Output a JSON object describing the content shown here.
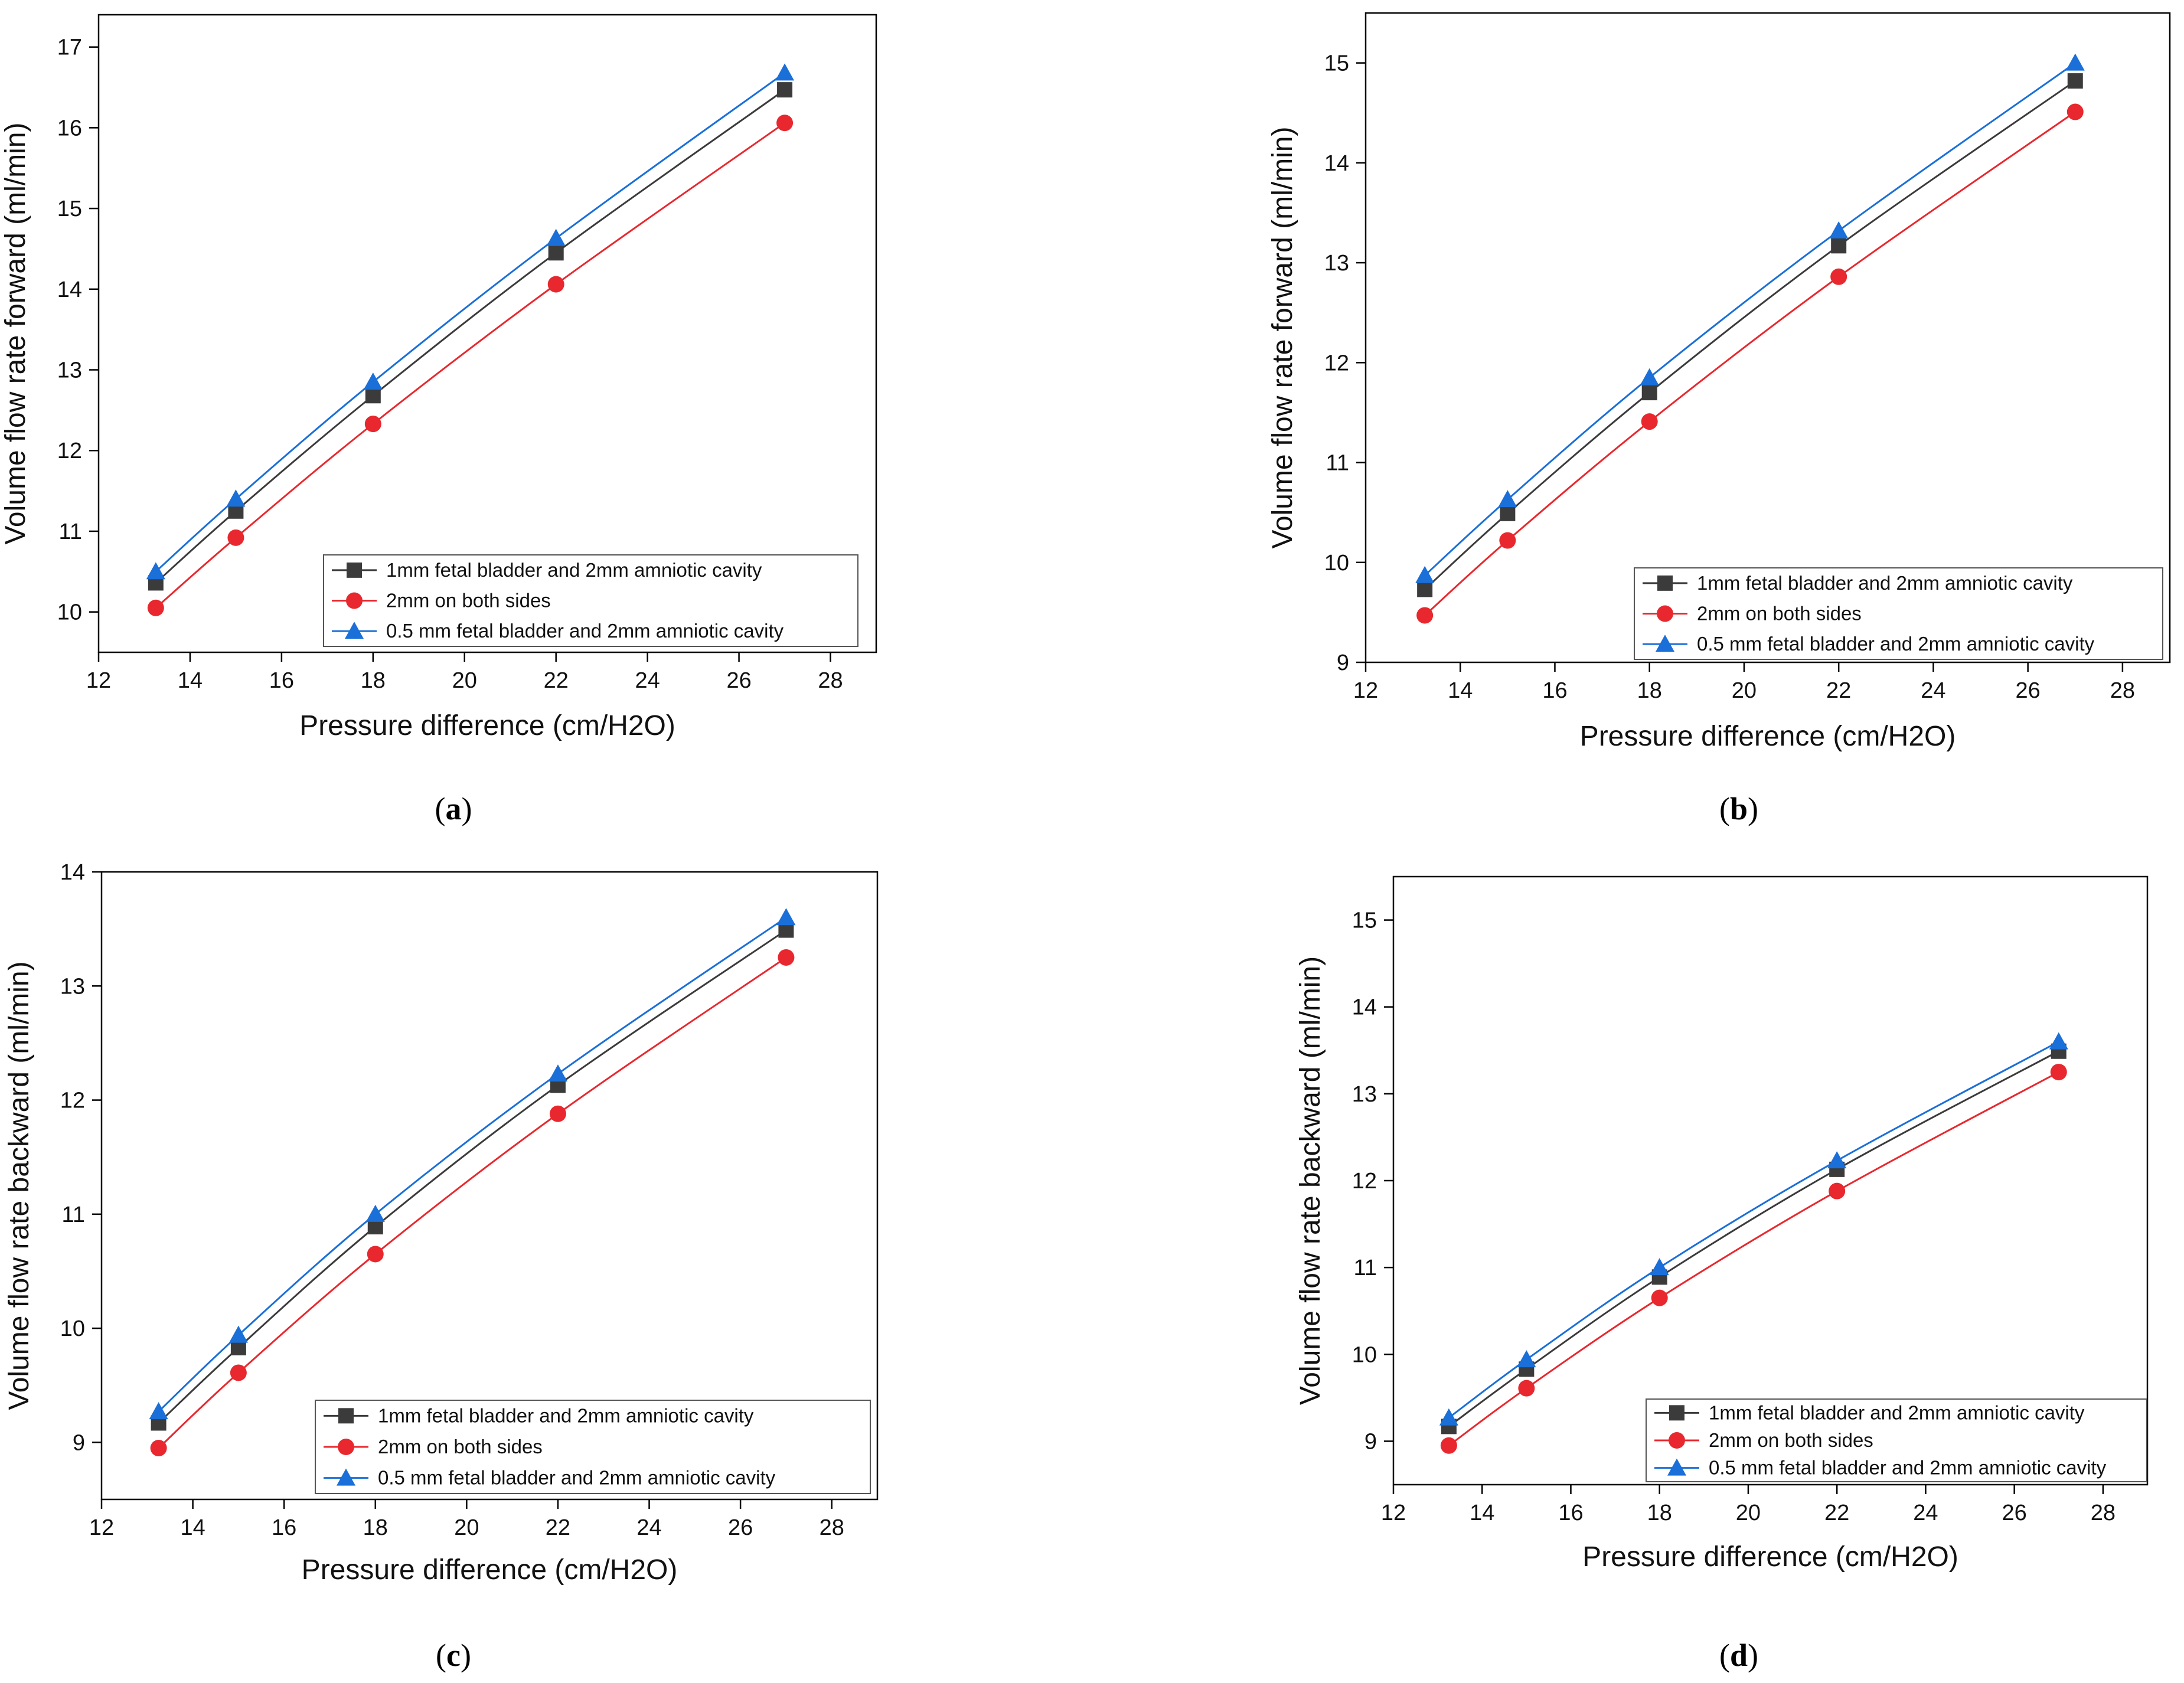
{
  "series_styles": [
    {
      "name": "1mm fetal bladder and 2mm amniotic cavity",
      "color": "#3b3b3b",
      "marker": "square"
    },
    {
      "name": "2mm on both sides",
      "color": "#e8282e",
      "marker": "circle"
    },
    {
      "name": "0.5 mm fetal bladder and 2mm amniotic cavity",
      "color": "#1a6fd8",
      "marker": "triangle"
    }
  ],
  "chart_data": [
    {
      "panel": "a",
      "type": "line",
      "xlabel": "Pressure difference (cm/H2O)",
      "ylabel": "Volume flow rate forward (ml/min)",
      "xlim": [
        12,
        29
      ],
      "ylim": [
        9.5,
        17.4
      ],
      "xticks": [
        12,
        14,
        16,
        18,
        20,
        22,
        24,
        26,
        28
      ],
      "yticks": [
        10,
        11,
        12,
        13,
        14,
        15,
        16,
        17
      ],
      "x": [
        13.25,
        15,
        18,
        22,
        27
      ],
      "series": [
        {
          "name": "1mm fetal bladder and 2mm amniotic cavity",
          "values": [
            10.36,
            11.25,
            12.68,
            14.45,
            16.47
          ]
        },
        {
          "name": "2mm on both sides",
          "values": [
            10.05,
            10.92,
            12.33,
            14.06,
            16.06
          ]
        },
        {
          "name": "0.5 mm fetal bladder and 2mm amniotic cavity",
          "values": [
            10.5,
            11.4,
            12.85,
            14.63,
            16.68
          ]
        }
      ],
      "legend": "bottom-right"
    },
    {
      "panel": "b",
      "type": "line",
      "xlabel": "Pressure difference (cm/H2O)",
      "ylabel": "Volume flow rate forward (ml/min)",
      "xlim": [
        12,
        29
      ],
      "ylim": [
        9,
        15.5
      ],
      "xticks": [
        12,
        14,
        16,
        18,
        20,
        22,
        24,
        26,
        28
      ],
      "yticks": [
        9,
        10,
        11,
        12,
        13,
        14,
        15
      ],
      "x": [
        13.25,
        15,
        18,
        22,
        27
      ],
      "series": [
        {
          "name": "1mm fetal bladder and 2mm amniotic cavity",
          "values": [
            9.73,
            10.49,
            11.7,
            13.17,
            14.82
          ]
        },
        {
          "name": "2mm on both sides",
          "values": [
            9.47,
            10.22,
            11.41,
            12.86,
            14.51
          ]
        },
        {
          "name": "0.5 mm fetal bladder and 2mm amniotic cavity",
          "values": [
            9.87,
            10.63,
            11.85,
            13.32,
            15.0
          ]
        }
      ],
      "legend": "bottom-right"
    },
    {
      "panel": "c",
      "type": "line",
      "xlabel": "Pressure difference (cm/H2O)",
      "ylabel": "Volume flow rate backward (ml/min)",
      "xlim": [
        12,
        29
      ],
      "ylim": [
        8.5,
        14
      ],
      "xticks": [
        12,
        14,
        16,
        18,
        20,
        22,
        24,
        26,
        28
      ],
      "yticks": [
        9,
        10,
        11,
        12,
        13,
        14
      ],
      "x": [
        13.25,
        15,
        18,
        22,
        27
      ],
      "series": [
        {
          "name": "1mm fetal bladder and 2mm amniotic cavity",
          "values": [
            9.17,
            9.83,
            10.89,
            12.13,
            13.49
          ]
        },
        {
          "name": "2mm on both sides",
          "values": [
            8.95,
            9.61,
            10.65,
            11.88,
            13.25
          ]
        },
        {
          "name": "0.5 mm fetal bladder and 2mm amniotic cavity",
          "values": [
            9.27,
            9.94,
            11.0,
            12.23,
            13.6
          ]
        }
      ],
      "legend": "bottom-right"
    },
    {
      "panel": "d",
      "type": "line",
      "xlabel": "Pressure difference (cm/H2O)",
      "ylabel": "Volume flow rate backward (ml/min)",
      "xlim": [
        12,
        29
      ],
      "ylim": [
        8.5,
        15.5
      ],
      "xticks": [
        12,
        14,
        16,
        18,
        20,
        22,
        24,
        26,
        28
      ],
      "yticks": [
        9,
        10,
        11,
        12,
        13,
        14,
        15
      ],
      "x": [
        13.25,
        15,
        18,
        22,
        27
      ],
      "series": [
        {
          "name": "1mm fetal bladder and 2mm amniotic cavity",
          "values": [
            9.17,
            9.83,
            10.89,
            12.13,
            13.49
          ]
        },
        {
          "name": "2mm on both sides",
          "values": [
            8.95,
            9.61,
            10.65,
            11.88,
            13.25
          ]
        },
        {
          "name": "0.5 mm fetal bladder and 2mm amniotic cavity",
          "values": [
            9.27,
            9.94,
            11.0,
            12.23,
            13.6
          ]
        }
      ],
      "legend": "bottom-right"
    }
  ],
  "captions": {
    "a": {
      "open": "(",
      "letter": "a",
      "close": ")"
    },
    "b": {
      "open": "(",
      "letter": "b",
      "close": ")"
    },
    "c": {
      "open": "(",
      "letter": "c",
      "close": ")"
    },
    "d": {
      "open": "(",
      "letter": "d",
      "close": ")"
    }
  }
}
